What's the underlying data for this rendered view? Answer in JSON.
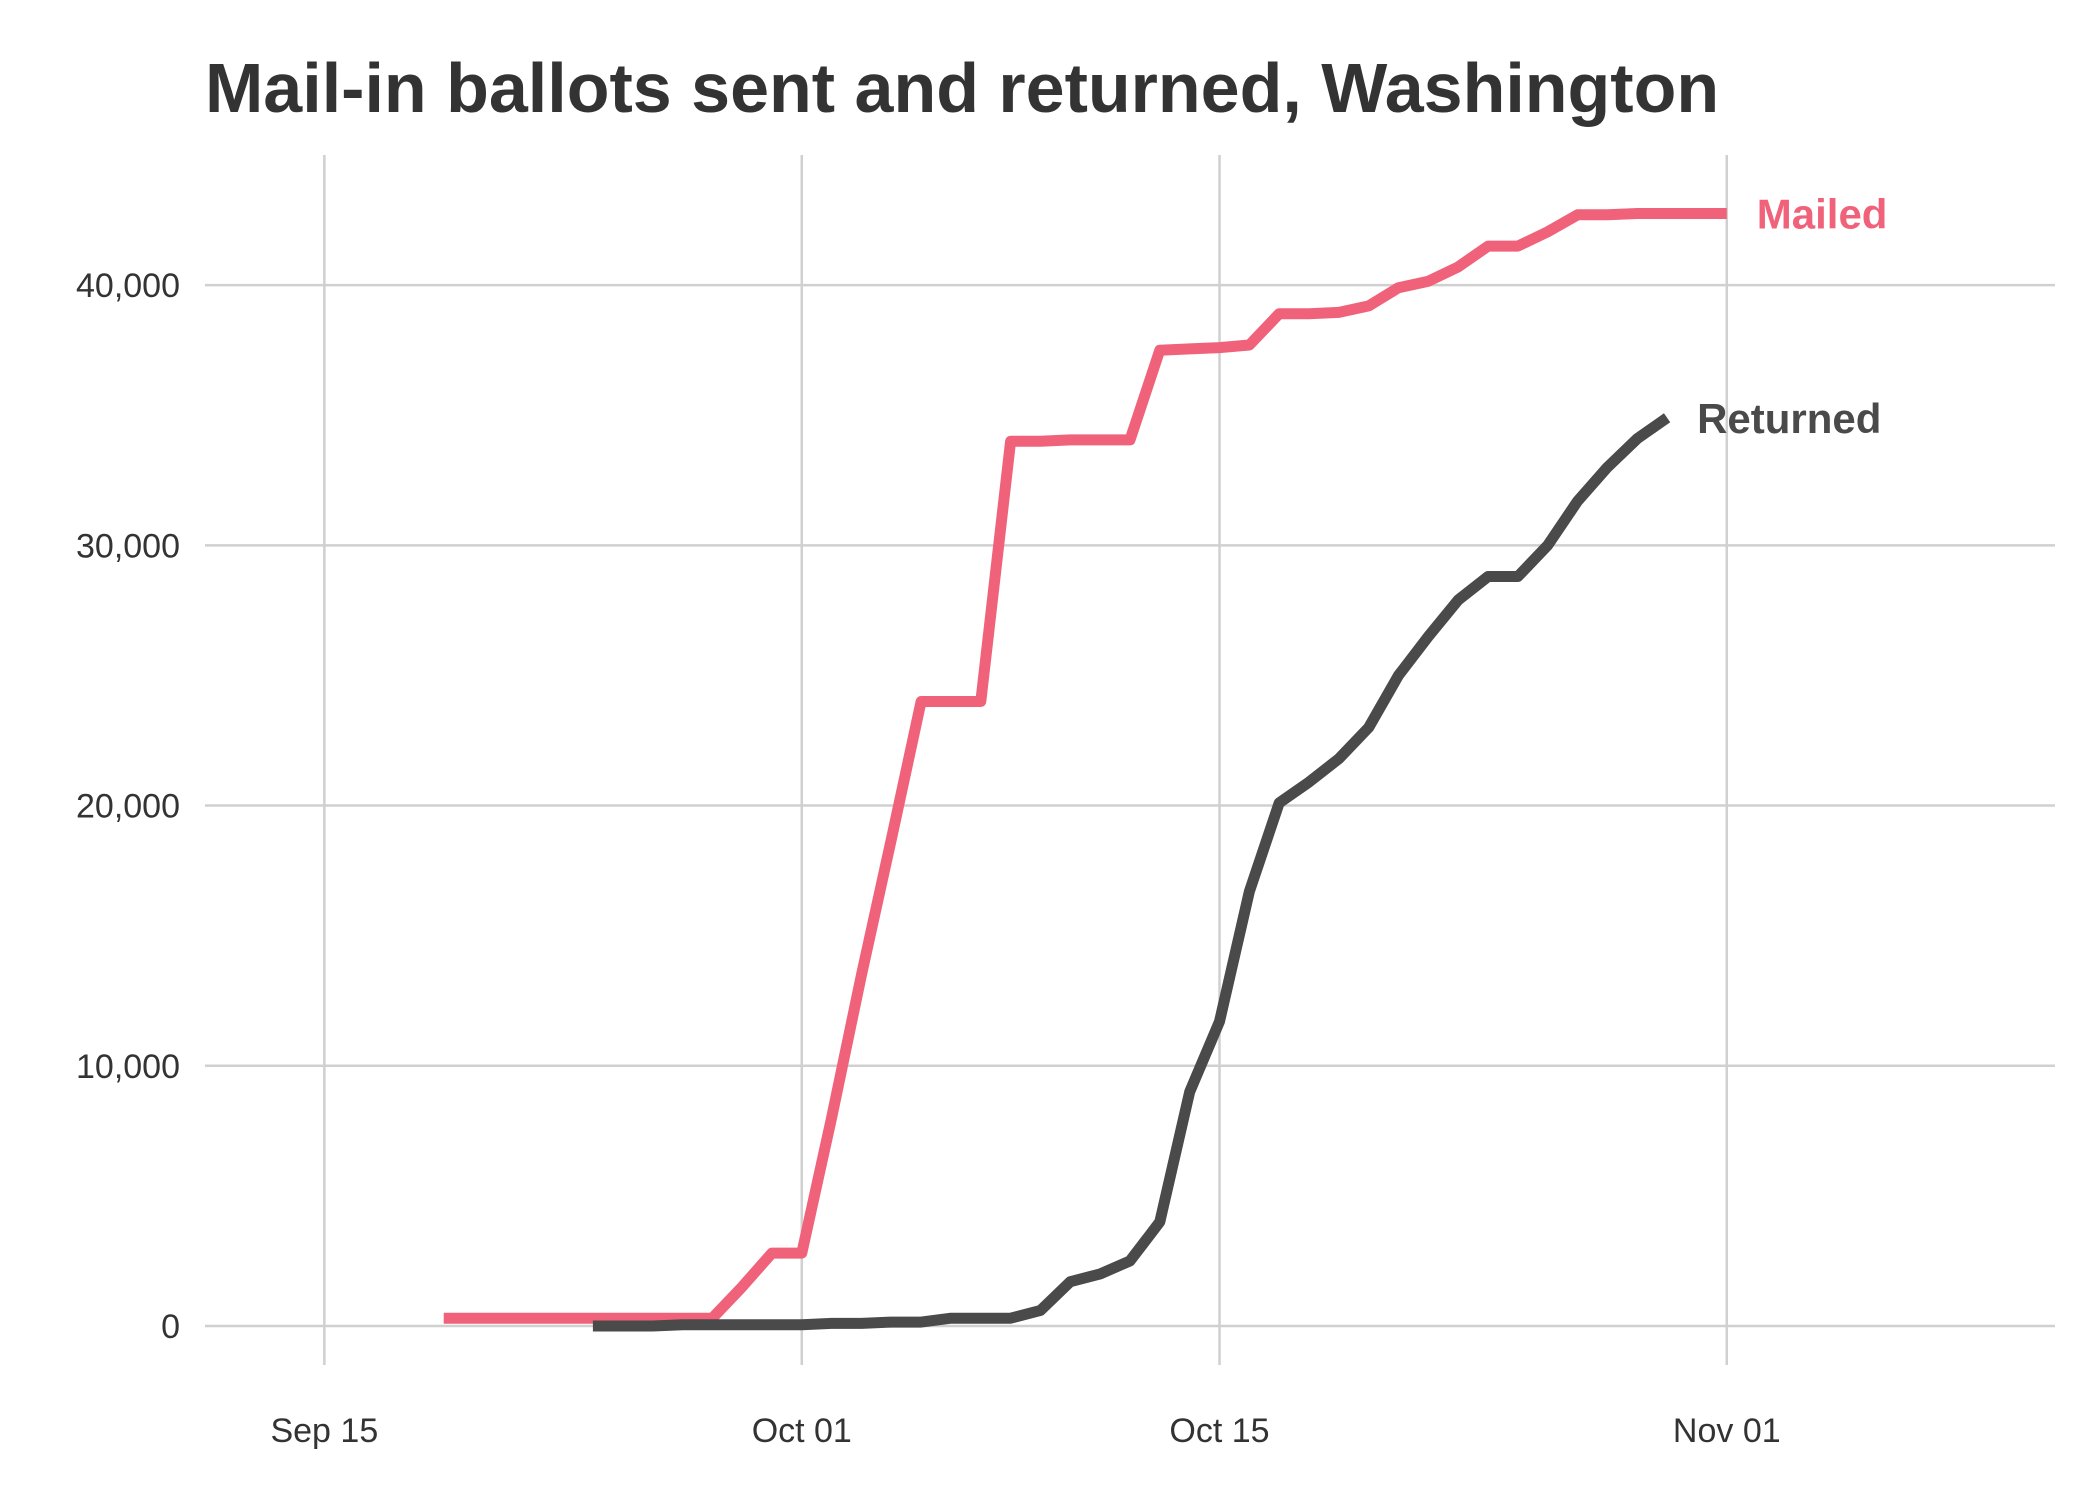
{
  "chart_data": {
    "type": "line",
    "title": "Mail-in ballots sent and returned, Washington",
    "xlabel": "",
    "ylabel": "",
    "x_ticks": [
      "Sep 15",
      "Oct 01",
      "Oct 15",
      "Nov 01"
    ],
    "y_ticks": [
      "0",
      "10,000",
      "20,000",
      "30,000",
      "40,000"
    ],
    "xlim": [
      "2020-09-11",
      "2020-11-12"
    ],
    "ylim": [
      -1500,
      45000
    ],
    "grid": true,
    "legend": "direct labels at line ends",
    "series": [
      {
        "name": "Mailed",
        "color": "#f0627a",
        "points": [
          [
            "2020-09-19",
            300
          ],
          [
            "2020-09-20",
            300
          ],
          [
            "2020-09-21",
            300
          ],
          [
            "2020-09-22",
            300
          ],
          [
            "2020-09-23",
            300
          ],
          [
            "2020-09-24",
            300
          ],
          [
            "2020-09-25",
            300
          ],
          [
            "2020-09-26",
            300
          ],
          [
            "2020-09-27",
            300
          ],
          [
            "2020-09-28",
            300
          ],
          [
            "2020-09-29",
            1500
          ],
          [
            "2020-09-30",
            2800
          ],
          [
            "2020-10-01",
            2800
          ],
          [
            "2020-10-02",
            8000
          ],
          [
            "2020-10-03",
            13500
          ],
          [
            "2020-10-04",
            18700
          ],
          [
            "2020-10-05",
            24000
          ],
          [
            "2020-10-06",
            24000
          ],
          [
            "2020-10-07",
            24000
          ],
          [
            "2020-10-08",
            34000
          ],
          [
            "2020-10-09",
            34000
          ],
          [
            "2020-10-10",
            34050
          ],
          [
            "2020-10-11",
            34050
          ],
          [
            "2020-10-12",
            34050
          ],
          [
            "2020-10-13",
            37500
          ],
          [
            "2020-10-14",
            37550
          ],
          [
            "2020-10-15",
            37600
          ],
          [
            "2020-10-16",
            37700
          ],
          [
            "2020-10-17",
            38900
          ],
          [
            "2020-10-18",
            38900
          ],
          [
            "2020-10-19",
            38950
          ],
          [
            "2020-10-20",
            39200
          ],
          [
            "2020-10-21",
            39900
          ],
          [
            "2020-10-22",
            40150
          ],
          [
            "2020-10-23",
            40700
          ],
          [
            "2020-10-24",
            41500
          ],
          [
            "2020-10-25",
            41500
          ],
          [
            "2020-10-26",
            42050
          ],
          [
            "2020-10-27",
            42700
          ],
          [
            "2020-10-28",
            42700
          ],
          [
            "2020-10-29",
            42750
          ],
          [
            "2020-10-30",
            42750
          ],
          [
            "2020-10-31",
            42750
          ],
          [
            "2020-11-01",
            42750
          ]
        ]
      },
      {
        "name": "Returned",
        "color": "#4a4a4a",
        "points": [
          [
            "2020-09-24",
            0
          ],
          [
            "2020-09-25",
            0
          ],
          [
            "2020-09-26",
            0
          ],
          [
            "2020-09-27",
            50
          ],
          [
            "2020-09-28",
            50
          ],
          [
            "2020-09-29",
            50
          ],
          [
            "2020-09-30",
            50
          ],
          [
            "2020-10-01",
            50
          ],
          [
            "2020-10-02",
            100
          ],
          [
            "2020-10-03",
            100
          ],
          [
            "2020-10-04",
            150
          ],
          [
            "2020-10-05",
            150
          ],
          [
            "2020-10-06",
            300
          ],
          [
            "2020-10-07",
            300
          ],
          [
            "2020-10-08",
            300
          ],
          [
            "2020-10-09",
            600
          ],
          [
            "2020-10-10",
            1700
          ],
          [
            "2020-10-11",
            2000
          ],
          [
            "2020-10-12",
            2500
          ],
          [
            "2020-10-13",
            4000
          ],
          [
            "2020-10-14",
            9000
          ],
          [
            "2020-10-15",
            11700
          ],
          [
            "2020-10-16",
            16700
          ],
          [
            "2020-10-17",
            20100
          ],
          [
            "2020-10-18",
            20900
          ],
          [
            "2020-10-19",
            21800
          ],
          [
            "2020-10-20",
            23000
          ],
          [
            "2020-10-21",
            25000
          ],
          [
            "2020-10-22",
            26500
          ],
          [
            "2020-10-23",
            27900
          ],
          [
            "2020-10-24",
            28800
          ],
          [
            "2020-10-25",
            28800
          ],
          [
            "2020-10-26",
            30000
          ],
          [
            "2020-10-27",
            31700
          ],
          [
            "2020-10-28",
            33000
          ],
          [
            "2020-10-29",
            34100
          ],
          [
            "2020-10-30",
            34900
          ]
        ]
      }
    ]
  }
}
